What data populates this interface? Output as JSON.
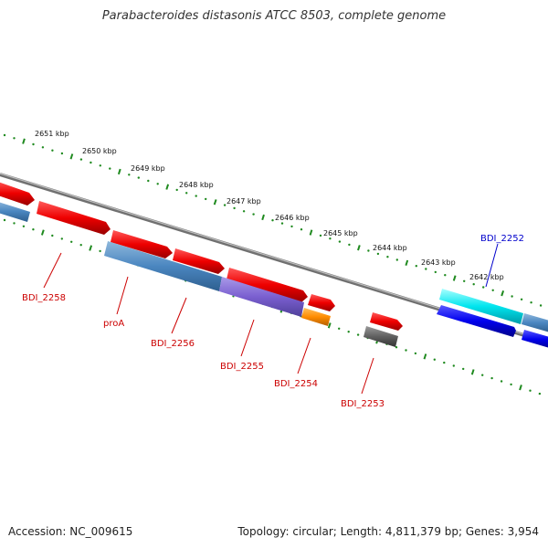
{
  "title": "Parabacteroides distasonis ATCC 8503, complete genome",
  "footer": {
    "accession": "Accession: NC_009615",
    "summary": "Topology: circular; Length: 4,811,379 bp; Genes: 3,954"
  },
  "colors": {
    "backbone": "#8c8c8c",
    "tick": "#1f8a1f",
    "label_red": "#cc0000",
    "label_blue": "#0000cc"
  },
  "kbp_ticks": [
    {
      "label": "2651 kbp",
      "pos": 2651
    },
    {
      "label": "2650 kbp",
      "pos": 2650
    },
    {
      "label": "2649 kbp",
      "pos": 2649
    },
    {
      "label": "2648 kbp",
      "pos": 2648
    },
    {
      "label": "2647 kbp",
      "pos": 2647
    },
    {
      "label": "2646 kbp",
      "pos": 2646
    },
    {
      "label": "2645 kbp",
      "pos": 2645
    },
    {
      "label": "2644 kbp",
      "pos": 2644
    },
    {
      "label": "2643 kbp",
      "pos": 2643
    },
    {
      "label": "2642 kbp",
      "pos": 2642
    }
  ],
  "genes": [
    {
      "id": "BDI_2258",
      "label": "BDI_2258",
      "color": "red"
    },
    {
      "id": "proA",
      "label": "proA",
      "color": "red"
    },
    {
      "id": "BDI_2256",
      "label": "BDI_2256",
      "color": "red"
    },
    {
      "id": "BDI_2255",
      "label": "BDI_2255",
      "color": "red"
    },
    {
      "id": "BDI_2254",
      "label": "BDI_2254",
      "color": "red"
    },
    {
      "id": "BDI_2253",
      "label": "BDI_2253",
      "color": "red"
    },
    {
      "id": "BDI_2252",
      "label": "BDI_2252",
      "color": "blue"
    }
  ]
}
